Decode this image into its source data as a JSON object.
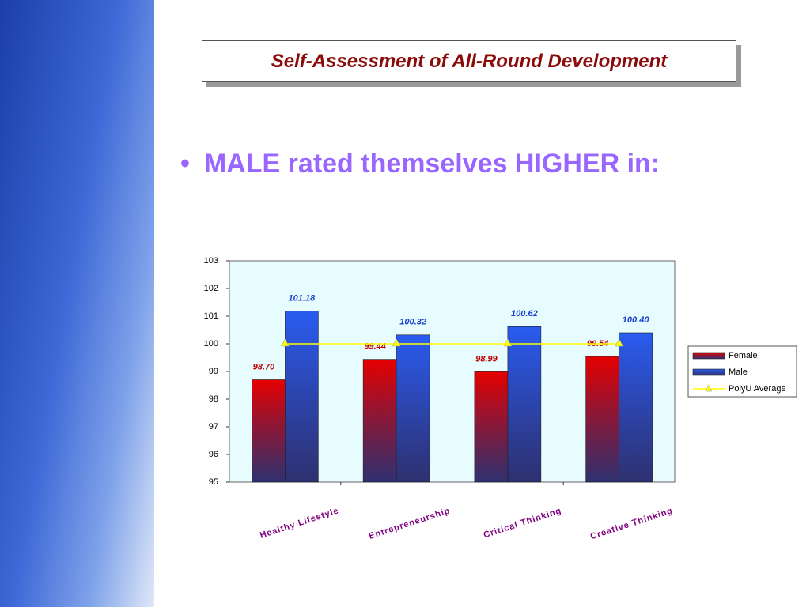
{
  "slide": {
    "title": "Self-Assessment of All-Round Development",
    "bullet": "MALE rated themselves HIGHER in:"
  },
  "chart_data": {
    "type": "bar",
    "categories": [
      "Healthy Lifestyle",
      "Entrepreneurship",
      "Critical Thinking",
      "Creative Thinking"
    ],
    "series": [
      {
        "name": "Female",
        "color": "#e60000",
        "values": [
          98.7,
          99.44,
          98.99,
          99.54
        ],
        "value_labels": [
          "98.70",
          "99.44",
          "98.99",
          "99.54"
        ]
      },
      {
        "name": "Male",
        "color": "#2a5cf0",
        "values": [
          101.18,
          100.32,
          100.62,
          100.4
        ],
        "value_labels": [
          "101.18",
          "100.32",
          "100.62",
          "100.40"
        ]
      },
      {
        "name": "PolyU Average",
        "type": "line",
        "color": "#ffff00",
        "values": [
          100,
          100,
          100,
          100
        ]
      }
    ],
    "ylim": [
      95,
      103
    ],
    "yticks": [
      95,
      96,
      97,
      98,
      99,
      100,
      101,
      102,
      103
    ],
    "legend": "right"
  }
}
